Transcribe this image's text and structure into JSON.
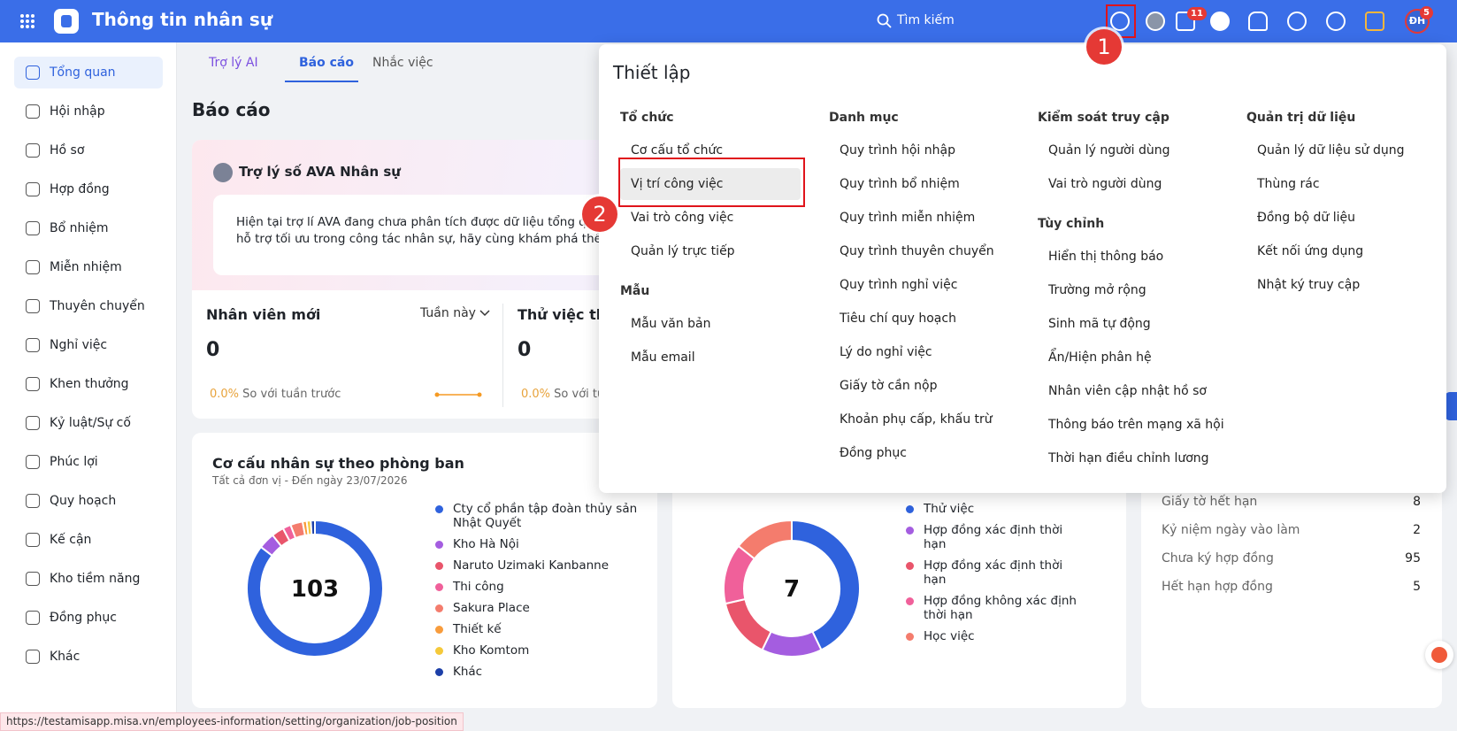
{
  "header": {
    "app_title": "Thông tin nhân sự",
    "search_placeholder": "Tìm kiếm",
    "badge_1": "11",
    "badge_2": "5",
    "avatar": "ĐH"
  },
  "sidebar": {
    "items": [
      "Tổng quan",
      "Hội nhập",
      "Hồ sơ",
      "Hợp đồng",
      "Bổ nhiệm",
      "Miễn nhiệm",
      "Thuyên chuyển",
      "Nghỉ việc",
      "Khen thưởng",
      "Kỷ luật/Sự cố",
      "Phúc lợi",
      "Quy hoạch",
      "Kế cận",
      "Kho tiềm năng",
      "Đồng phục",
      "Khác"
    ]
  },
  "tabs": [
    "Trợ lý AI",
    "Báo cáo",
    "Nhắc việc"
  ],
  "page_title": "Báo cáo",
  "assistant": {
    "title": "Trợ lý số AVA Nhân sự",
    "lines": [
      "Hiện tại trợ lí AVA đang chưa phân tích được dữ liệu tổng quan t",
      "hỗ trợ tối ưu trong công tác nhân sự, hãy cùng khám phá thêm nhé"
    ]
  },
  "stats": [
    {
      "title": "Nhân viên mới",
      "period": "Tuần này",
      "value": 0,
      "change": "0.0%",
      "compare": "So với tuần trước"
    },
    {
      "title": "Thử việc tha",
      "value": 0,
      "change": "0.0%",
      "compare": "So với tu"
    }
  ],
  "department_chart": {
    "type": "donut",
    "title": "Cơ cấu nhân sự theo phòng ban",
    "subtitle": "Tất cả đơn vị - Đến ngày 23/07/2026",
    "total": 103,
    "slices": [
      {
        "name": "Cty cổ phần tập đoàn thủy sản Nhật Quyết",
        "color": "#2f62dd",
        "value": 88
      },
      {
        "name": "Kho Hà Nội",
        "color": "#a45de0",
        "value": 4
      },
      {
        "name": "Naruto Uzimaki Kanbanne",
        "color": "#e9556b",
        "value": 3
      },
      {
        "name": "Thi công",
        "color": "#f0609a",
        "value": 2
      },
      {
        "name": "Sakura Place",
        "color": "#f47c6d",
        "value": 3
      },
      {
        "name": "Thiết kế",
        "color": "#f89c3c",
        "value": 1
      },
      {
        "name": "Kho Komtom",
        "color": "#f5c93a",
        "value": 1
      },
      {
        "name": "Khác",
        "color": "#1c3fa8",
        "value": 1
      }
    ]
  },
  "contract_chart": {
    "type": "donut",
    "total": 7,
    "slices": [
      {
        "name": "Thử việc",
        "color": "#2f62dd",
        "value": 3
      },
      {
        "name": "Hợp đồng xác định thời hạn",
        "color": "#a45de0",
        "value": 1
      },
      {
        "name": "Hợp đồng xác định thời hạn",
        "color": "#e9556b",
        "value": 1
      },
      {
        "name": "Hợp đồng không xác định thời hạn",
        "color": "#f0609a",
        "value": 1
      },
      {
        "name": "Học việc",
        "color": "#f47c6d",
        "value": 1
      }
    ]
  },
  "reminders": {
    "rows": [
      {
        "label": "Giấy tờ hết hạn",
        "count": 8
      },
      {
        "label": "Kỷ niệm ngày vào làm",
        "count": 2
      },
      {
        "label": "Chưa ký hợp đồng",
        "count": 95
      },
      {
        "label": "Hết hạn hợp đồng",
        "count": 5
      }
    ]
  },
  "settings_menu": {
    "title": "Thiết lập",
    "columns": [
      [
        {
          "heading": "Tổ chức",
          "items": [
            "Cơ cấu tổ chức",
            "Vị trí công việc",
            "Vai trò công việc",
            "Quản lý trực tiếp"
          ]
        },
        {
          "heading": "Mẫu",
          "items": [
            "Mẫu văn bản",
            "Mẫu email"
          ]
        }
      ],
      [
        {
          "heading": "Danh mục",
          "items": [
            "Quy trình hội nhập",
            "Quy trình bổ nhiệm",
            "Quy trình miễn nhiệm",
            "Quy trình thuyên chuyển",
            "Quy trình nghỉ việc",
            "Tiêu chí quy hoạch",
            "Lý do nghỉ việc",
            "Giấy tờ cần nộp",
            "Khoản phụ cấp, khấu trừ",
            "Đồng phục"
          ]
        }
      ],
      [
        {
          "heading": "Kiểm soát truy cập",
          "items": [
            "Quản lý người dùng",
            "Vai trò người dùng"
          ]
        },
        {
          "heading": "Tùy chỉnh",
          "items": [
            "Hiển thị thông báo",
            "Trường mở rộng",
            "Sinh mã tự động",
            "Ẩn/Hiện phân hệ",
            "Nhân viên cập nhật hồ sơ",
            "Thông báo trên mạng xã hội",
            "Thời hạn điều chỉnh lương"
          ]
        }
      ],
      [
        {
          "heading": "Quản trị dữ liệu",
          "items": [
            "Quản lý dữ liệu sử dụng",
            "Thùng rác",
            "Đồng bộ dữ liệu",
            "Kết nối ứng dụng",
            "Nhật ký truy cập"
          ]
        }
      ]
    ]
  },
  "annotations": [
    "1",
    "2"
  ],
  "status_url": "https://testamisapp.misa.vn/employees-information/setting/organization/job-position"
}
